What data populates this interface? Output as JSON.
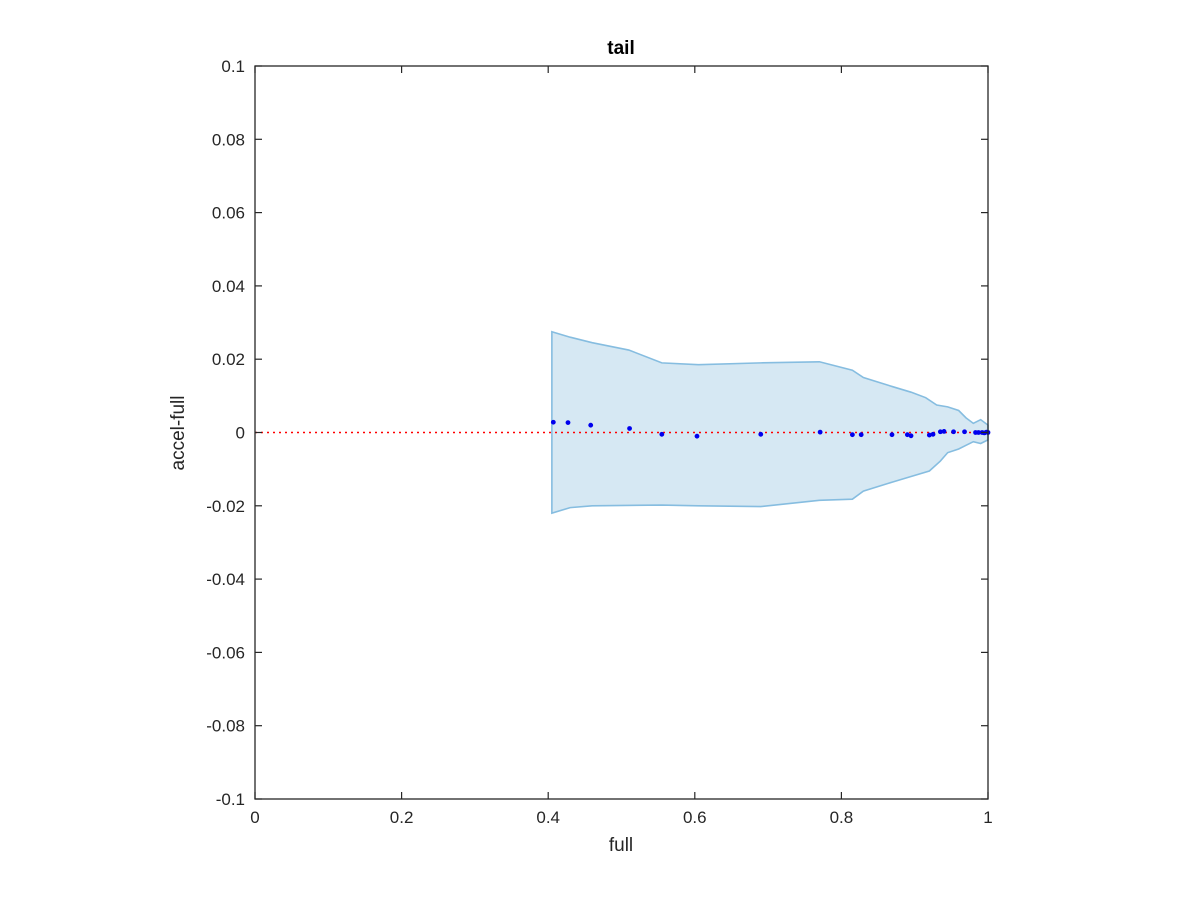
{
  "chart_data": {
    "type": "scatter",
    "title": "tail",
    "xlabel": "full",
    "ylabel": "accel-full",
    "xlim": [
      0,
      1
    ],
    "ylim": [
      -0.1,
      0.1
    ],
    "x_ticks": [
      0,
      0.2,
      0.4,
      0.6,
      0.8,
      1
    ],
    "x_tick_labels": [
      "0",
      "0.2",
      "0.4",
      "0.6",
      "0.8",
      "1"
    ],
    "y_ticks": [
      -0.1,
      -0.08,
      -0.06,
      -0.04,
      -0.02,
      0,
      0.02,
      0.04,
      0.06,
      0.08,
      0.1
    ],
    "y_tick_labels": [
      "-0.1",
      "-0.08",
      "-0.06",
      "-0.04",
      "-0.02",
      "0",
      "0.02",
      "0.04",
      "0.06",
      "0.08",
      "0.1"
    ],
    "grid": false,
    "colors": {
      "points": "#0000ee",
      "band_fill": "#d6e8f3",
      "band_edge": "#86bde0",
      "reference_line": "#ff0000",
      "axes": "#262626"
    },
    "reference_line": {
      "y": 0,
      "style": "dotted"
    },
    "band": {
      "upper": [
        [
          0.405,
          0.0275
        ],
        [
          0.43,
          0.026
        ],
        [
          0.46,
          0.0245
        ],
        [
          0.51,
          0.0225
        ],
        [
          0.555,
          0.019
        ],
        [
          0.605,
          0.0185
        ],
        [
          0.69,
          0.019
        ],
        [
          0.77,
          0.0193
        ],
        [
          0.815,
          0.017
        ],
        [
          0.83,
          0.015
        ],
        [
          0.87,
          0.0125
        ],
        [
          0.895,
          0.011
        ],
        [
          0.915,
          0.0095
        ],
        [
          0.93,
          0.0075
        ],
        [
          0.945,
          0.007
        ],
        [
          0.96,
          0.006
        ],
        [
          0.97,
          0.004
        ],
        [
          0.98,
          0.0025
        ],
        [
          0.99,
          0.0035
        ],
        [
          1.0,
          0.002
        ]
      ],
      "lower": [
        [
          0.405,
          -0.022
        ],
        [
          0.43,
          -0.0205
        ],
        [
          0.46,
          -0.02
        ],
        [
          0.555,
          -0.0198
        ],
        [
          0.605,
          -0.02
        ],
        [
          0.69,
          -0.0202
        ],
        [
          0.77,
          -0.0185
        ],
        [
          0.815,
          -0.0182
        ],
        [
          0.83,
          -0.016
        ],
        [
          0.87,
          -0.0135
        ],
        [
          0.895,
          -0.012
        ],
        [
          0.92,
          -0.0105
        ],
        [
          0.935,
          -0.0078
        ],
        [
          0.945,
          -0.0055
        ],
        [
          0.96,
          -0.0045
        ],
        [
          0.97,
          -0.0035
        ],
        [
          0.98,
          -0.0025
        ],
        [
          0.99,
          -0.003
        ],
        [
          1.0,
          -0.002
        ]
      ]
    },
    "points": [
      [
        0.407,
        0.0028
      ],
      [
        0.427,
        0.0027
      ],
      [
        0.458,
        0.002
      ],
      [
        0.511,
        0.0011
      ],
      [
        0.555,
        -0.0005
      ],
      [
        0.603,
        -0.001
      ],
      [
        0.69,
        -0.0005
      ],
      [
        0.771,
        0.0001
      ],
      [
        0.815,
        -0.0006
      ],
      [
        0.827,
        -0.0006
      ],
      [
        0.869,
        -0.0006
      ],
      [
        0.89,
        -0.0006
      ],
      [
        0.895,
        -0.0009
      ],
      [
        0.92,
        -0.0007
      ],
      [
        0.925,
        -0.0005
      ],
      [
        0.935,
        0.0002
      ],
      [
        0.94,
        0.0003
      ],
      [
        0.953,
        0.0002
      ],
      [
        0.968,
        0.0002
      ],
      [
        0.983,
        0.0
      ],
      [
        0.987,
        0.0
      ],
      [
        0.992,
        0.0
      ],
      [
        0.995,
        -0.0001
      ],
      [
        0.998,
        0.0001
      ],
      [
        1.0,
        0.0
      ]
    ]
  }
}
